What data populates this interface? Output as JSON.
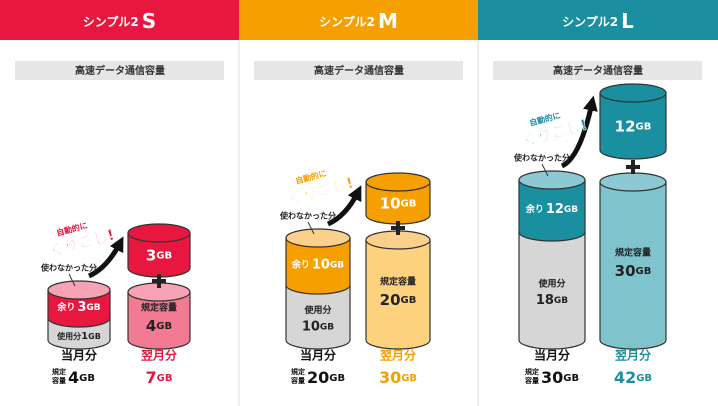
{
  "plans": [
    {
      "name": "シンプル2",
      "size": "S",
      "capacity_label": "高速データ通信容量",
      "auto": "自動的に",
      "kurikoshi": "くりこし!",
      "unused": "使わなかった分",
      "remain": {
        "label": "余り",
        "value": "3",
        "unit": "GB"
      },
      "used": {
        "label": "使用分",
        "value": "1",
        "unit": "GB"
      },
      "carried": {
        "value": "3",
        "unit": "GB"
      },
      "base": {
        "label": "規定容量",
        "value": "4",
        "unit": "GB"
      },
      "current_month": "当月分",
      "next_month": "翌月分",
      "summary": {
        "label": [
          "規定",
          "容量"
        ],
        "value": "4",
        "unit": "GB"
      },
      "total": {
        "value": "7",
        "unit": "GB"
      }
    },
    {
      "name": "シンプル2",
      "size": "M",
      "capacity_label": "高速データ通信容量",
      "auto": "自動的に",
      "kurikoshi": "くりこし!",
      "unused": "使わなかった分",
      "remain": {
        "label": "余り",
        "value": "10",
        "unit": "GB"
      },
      "used": {
        "label": "使用分",
        "value": "10",
        "unit": "GB"
      },
      "carried": {
        "value": "10",
        "unit": "GB"
      },
      "base": {
        "label": "規定容量",
        "value": "20",
        "unit": "GB"
      },
      "current_month": "当月分",
      "next_month": "翌月分",
      "summary": {
        "label": [
          "規定",
          "容量"
        ],
        "value": "20",
        "unit": "GB"
      },
      "total": {
        "value": "30",
        "unit": "GB"
      }
    },
    {
      "name": "シンプル2",
      "size": "L",
      "capacity_label": "高速データ通信容量",
      "auto": "自動的に",
      "kurikoshi": "くりこし!",
      "unused": "使わなかった分",
      "remain": {
        "label": "余り",
        "value": "12",
        "unit": "GB"
      },
      "used": {
        "label": "使用分",
        "value": "18",
        "unit": "GB"
      },
      "carried": {
        "value": "12",
        "unit": "GB"
      },
      "base": {
        "label": "規定容量",
        "value": "30",
        "unit": "GB"
      },
      "current_month": "当月分",
      "next_month": "翌月分",
      "summary": {
        "label": [
          "規定",
          "容量"
        ],
        "value": "30",
        "unit": "GB"
      },
      "total": {
        "value": "42",
        "unit": "GB"
      }
    }
  ]
}
